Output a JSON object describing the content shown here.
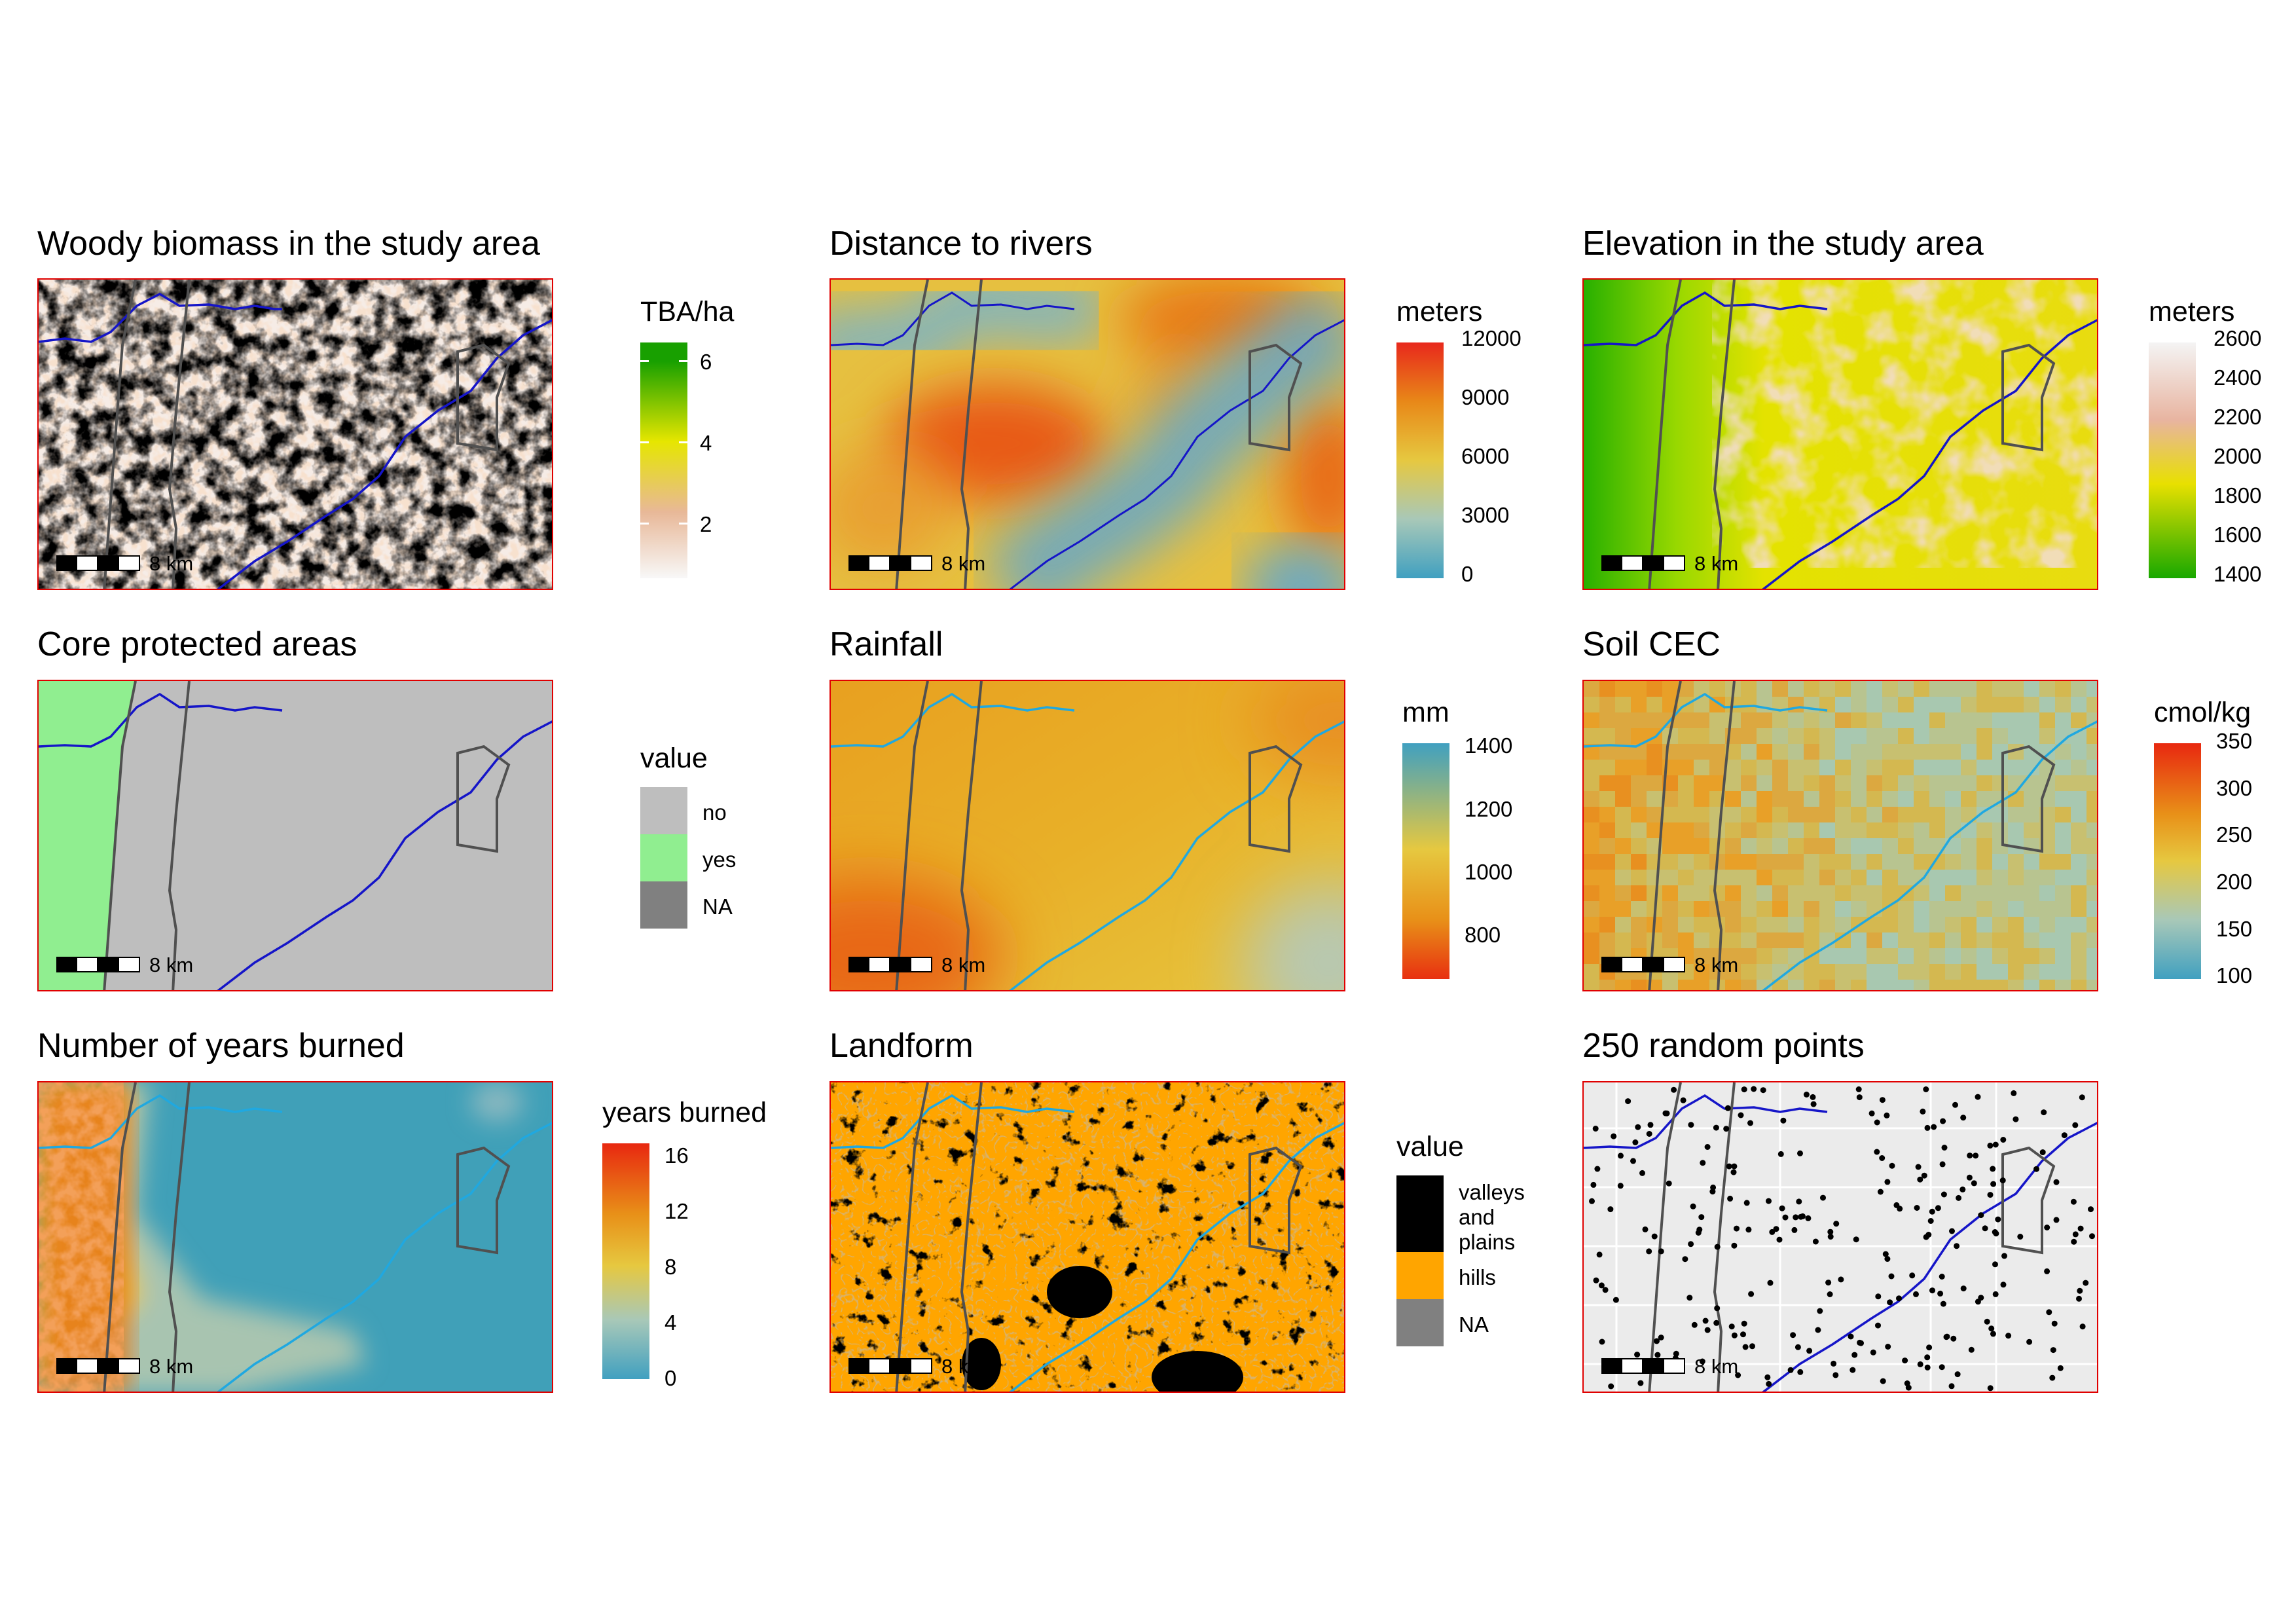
{
  "scale_label": "8 km",
  "panels": [
    {
      "title": "Woody biomass in the study area"
    },
    {
      "title": "Distance to rivers"
    },
    {
      "title": "Elevation in the study area"
    },
    {
      "title": "Core protected areas"
    },
    {
      "title": "Rainfall"
    },
    {
      "title": "Soil CEC"
    },
    {
      "title": "Number of years burned"
    },
    {
      "title": "Landform"
    },
    {
      "title": "250 random points"
    }
  ],
  "legends": {
    "biomass": {
      "title": "TBA/ha",
      "ticks": [
        "6",
        "4",
        "2"
      ],
      "colors": [
        "#18a000",
        "#e6e600",
        "#e8b898",
        "#f8f8f8"
      ]
    },
    "distance": {
      "title": "meters",
      "ticks": [
        "12000",
        "9000",
        "6000",
        "3000",
        "0"
      ],
      "colors": [
        "#e8281c",
        "#e88818",
        "#e6c840",
        "#a8c8b8",
        "#40a0c0"
      ]
    },
    "elevation": {
      "title": "meters",
      "ticks": [
        "2600",
        "2400",
        "2200",
        "2000",
        "1800",
        "1600",
        "1400"
      ],
      "colors": [
        "#f4f4f4",
        "#e8b4a0",
        "#e8e000",
        "#18a800"
      ]
    },
    "protected": {
      "title": "value",
      "items": [
        "no",
        "yes",
        "NA"
      ],
      "colors": [
        "#bebebe",
        "#90ee90",
        "#808080"
      ]
    },
    "rainfall": {
      "title": "mm",
      "ticks": [
        "1400",
        "1200",
        "1000",
        "800"
      ],
      "colors": [
        "#40a0c0",
        "#e6c840",
        "#e89018",
        "#e83010"
      ]
    },
    "cec": {
      "title": "cmol/kg",
      "ticks": [
        "350",
        "300",
        "250",
        "200",
        "150",
        "100"
      ],
      "colors": [
        "#e82810",
        "#e89018",
        "#e6c840",
        "#a8c8b8",
        "#40a0c0"
      ]
    },
    "burned": {
      "title": "years burned",
      "ticks": [
        "16",
        "12",
        "8",
        "4",
        "0"
      ],
      "colors": [
        "#e82810",
        "#e89018",
        "#e6c840",
        "#a8c8b8",
        "#40a0c0"
      ]
    },
    "landform": {
      "title": "value",
      "items": [
        "valleys and plains",
        "hills",
        "NA"
      ],
      "colors": [
        "#000000",
        "#ffa500",
        "#808080"
      ]
    }
  }
}
